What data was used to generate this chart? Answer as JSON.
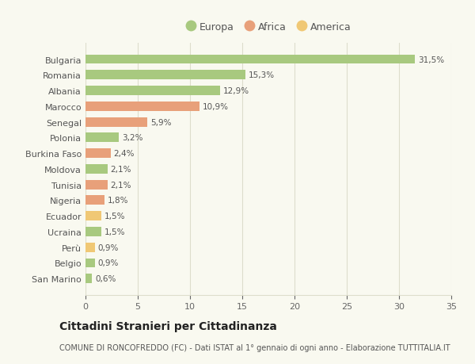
{
  "categories": [
    "Bulgaria",
    "Romania",
    "Albania",
    "Marocco",
    "Senegal",
    "Polonia",
    "Burkina Faso",
    "Moldova",
    "Tunisia",
    "Nigeria",
    "Ecuador",
    "Ucraina",
    "Perù",
    "Belgio",
    "San Marino"
  ],
  "values": [
    31.5,
    15.3,
    12.9,
    10.9,
    5.9,
    3.2,
    2.4,
    2.1,
    2.1,
    1.8,
    1.5,
    1.5,
    0.9,
    0.9,
    0.6
  ],
  "labels": [
    "31,5%",
    "15,3%",
    "12,9%",
    "10,9%",
    "5,9%",
    "3,2%",
    "2,4%",
    "2,1%",
    "2,1%",
    "1,8%",
    "1,5%",
    "1,5%",
    "0,9%",
    "0,9%",
    "0,6%"
  ],
  "continents": [
    "Europa",
    "Europa",
    "Europa",
    "Africa",
    "Africa",
    "Europa",
    "Africa",
    "Europa",
    "Africa",
    "Africa",
    "America",
    "Europa",
    "America",
    "Europa",
    "Europa"
  ],
  "colors": {
    "Europa": "#a8c97f",
    "Africa": "#e8a07a",
    "America": "#f0c875"
  },
  "legend_labels": [
    "Europa",
    "Africa",
    "America"
  ],
  "xlim": [
    0,
    35
  ],
  "xticks": [
    0,
    5,
    10,
    15,
    20,
    25,
    30,
    35
  ],
  "title": "Cittadini Stranieri per Cittadinanza",
  "subtitle": "COMUNE DI RONCOFREDDO (FC) - Dati ISTAT al 1° gennaio di ogni anno - Elaborazione TUTTITALIA.IT",
  "background_color": "#f9f9f0",
  "grid_color": "#ddddcc",
  "bar_height": 0.6,
  "label_fontsize": 7.5,
  "ytick_fontsize": 8,
  "xtick_fontsize": 8,
  "title_fontsize": 10,
  "subtitle_fontsize": 7
}
